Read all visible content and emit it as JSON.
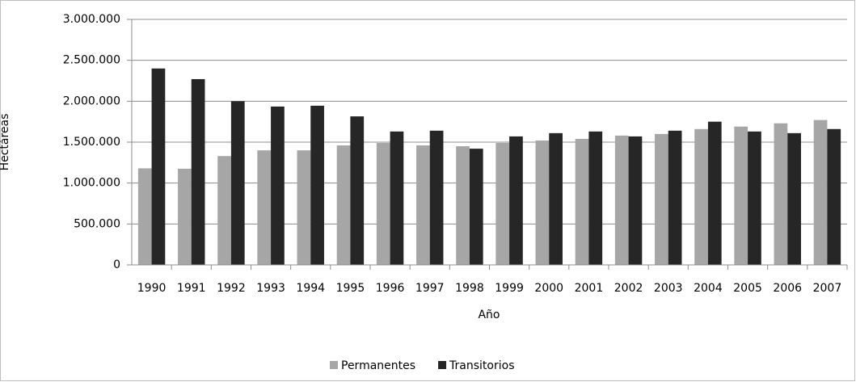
{
  "chart_data": {
    "type": "bar",
    "y_label": "Hectáreas",
    "x_label": "Año",
    "categories": [
      "1990",
      "1991",
      "1992",
      "1993",
      "1994",
      "1995",
      "1996",
      "1997",
      "1998",
      "1999",
      "2000",
      "2001",
      "2002",
      "2003",
      "2004",
      "2005",
      "2006",
      "2007"
    ],
    "series": [
      {
        "name": "Permanentes",
        "color": "#a6a6a6",
        "values": [
          1180000,
          1175000,
          1330000,
          1400000,
          1400000,
          1460000,
          1490000,
          1460000,
          1450000,
          1490000,
          1520000,
          1540000,
          1580000,
          1600000,
          1660000,
          1690000,
          1730000,
          1770000
        ]
      },
      {
        "name": "Transitorios",
        "color": "#262626",
        "values": [
          2400000,
          2270000,
          2000000,
          1935000,
          1945000,
          1815000,
          1630000,
          1640000,
          1420000,
          1570000,
          1610000,
          1630000,
          1570000,
          1640000,
          1750000,
          1630000,
          1610000,
          1660000
        ]
      }
    ],
    "ylim": [
      0,
      3000000
    ],
    "yticks": [
      {
        "value": 0,
        "label": "0"
      },
      {
        "value": 500000,
        "label": "500.000"
      },
      {
        "value": 1000000,
        "label": "1.000.000"
      },
      {
        "value": 1500000,
        "label": "1.500.000"
      },
      {
        "value": 2000000,
        "label": "2.000.000"
      },
      {
        "value": 2500000,
        "label": "2.500.000"
      },
      {
        "value": 3000000,
        "label": "3.000.000"
      }
    ],
    "grid": true,
    "legend": "bottom"
  }
}
